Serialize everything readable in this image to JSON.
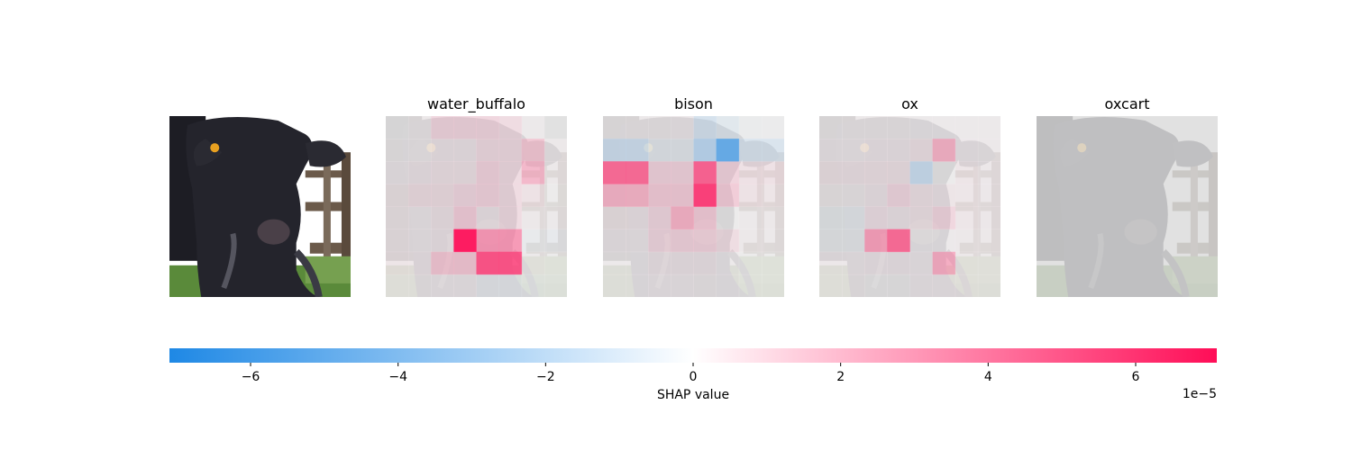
{
  "chart_data": {
    "type": "heatmap",
    "description_free": true,
    "panels": [
      {
        "title": "",
        "kind": "original-image"
      },
      {
        "title": "water_buffalo",
        "grid_rows": 8,
        "grid_cols": 8,
        "shap_values": [
          [
            0.1,
            0.3,
            1.5,
            1.5,
            1.5,
            1.2,
            0.2,
            0.0
          ],
          [
            0.2,
            0.3,
            0.6,
            0.6,
            1.2,
            1.2,
            2.2,
            0.3
          ],
          [
            0.4,
            0.6,
            0.8,
            0.8,
            1.6,
            1.2,
            2.8,
            0.3
          ],
          [
            0.6,
            1.0,
            1.0,
            1.4,
            1.6,
            1.2,
            0.8,
            0.1
          ],
          [
            0.5,
            0.4,
            0.7,
            1.9,
            0.6,
            1.2,
            0.3,
            0.2
          ],
          [
            0.5,
            0.4,
            0.6,
            6.8,
            3.8,
            3.8,
            -0.3,
            -0.4
          ],
          [
            0.6,
            0.5,
            2.2,
            2.2,
            5.6,
            5.6,
            0.2,
            0.1
          ],
          [
            0.3,
            0.3,
            0.4,
            0.4,
            -0.4,
            -0.4,
            -0.2,
            -0.1
          ]
        ]
      },
      {
        "title": "bison",
        "grid_rows": 8,
        "grid_cols": 8,
        "shap_values": [
          [
            0.2,
            0.3,
            0.3,
            0.4,
            -1.6,
            -0.9,
            -0.2,
            -0.1
          ],
          [
            -2.0,
            -2.0,
            -0.6,
            -0.6,
            -2.8,
            -5.4,
            -1.4,
            -1.4
          ],
          [
            5.0,
            5.0,
            1.6,
            1.6,
            5.2,
            1.6,
            0.9,
            0.9
          ],
          [
            2.9,
            2.9,
            2.0,
            2.0,
            6.0,
            2.0,
            0.8,
            0.6
          ],
          [
            0.6,
            0.6,
            1.4,
            3.0,
            2.0,
            0.1,
            0.2,
            0.3
          ],
          [
            0.4,
            0.4,
            1.4,
            1.6,
            1.6,
            1.1,
            0.3,
            0.2
          ],
          [
            0.2,
            0.2,
            0.6,
            0.6,
            0.6,
            0.2,
            0.1,
            0.1
          ],
          [
            0.2,
            0.2,
            0.4,
            0.4,
            0.3,
            0.2,
            0.1,
            0.1
          ]
        ]
      },
      {
        "title": "ox",
        "grid_rows": 8,
        "grid_cols": 8,
        "shap_values": [
          [
            0.2,
            0.3,
            0.3,
            0.3,
            0.2,
            0.2,
            0.2,
            0.2
          ],
          [
            0.4,
            0.4,
            0.5,
            0.5,
            0.8,
            3.0,
            0.4,
            0.3
          ],
          [
            0.7,
            0.7,
            0.8,
            0.8,
            -2.2,
            0.1,
            0.6,
            0.4
          ],
          [
            0.3,
            0.3,
            0.6,
            1.4,
            0.8,
            0.6,
            0.5,
            0.4
          ],
          [
            -0.5,
            -0.5,
            0.9,
            0.6,
            0.8,
            1.5,
            0.5,
            0.4
          ],
          [
            -0.3,
            -0.3,
            3.6,
            5.0,
            0.2,
            0.2,
            0.3,
            0.3
          ],
          [
            0.4,
            0.4,
            0.5,
            0.5,
            0.4,
            3.2,
            0.3,
            0.2
          ],
          [
            0.3,
            0.3,
            0.1,
            0.1,
            0.4,
            0.4,
            0.3,
            0.2
          ]
        ]
      },
      {
        "title": "oxcart",
        "grid_rows": 8,
        "grid_cols": 8,
        "shap_values": [
          [
            0.0,
            0.0,
            0.0,
            0.0,
            0.0,
            0.0,
            0.0,
            0.0
          ],
          [
            0.0,
            0.0,
            0.0,
            0.0,
            0.0,
            0.0,
            0.0,
            0.0
          ],
          [
            0.0,
            0.0,
            0.0,
            0.0,
            0.0,
            0.0,
            0.0,
            0.0
          ],
          [
            0.0,
            0.0,
            0.0,
            0.0,
            0.0,
            0.0,
            0.0,
            0.0
          ],
          [
            0.0,
            0.0,
            0.0,
            0.0,
            0.0,
            0.0,
            0.0,
            0.0
          ],
          [
            0.0,
            0.0,
            0.0,
            0.0,
            0.0,
            0.0,
            0.0,
            0.0
          ],
          [
            0.0,
            0.0,
            0.0,
            0.0,
            0.0,
            0.0,
            0.0,
            0.0
          ],
          [
            0.0,
            0.0,
            0.0,
            0.0,
            0.0,
            0.0,
            0.0,
            0.0
          ]
        ]
      }
    ],
    "colorbar": {
      "label": "SHAP value",
      "range": [
        -7.1,
        7.1
      ],
      "ticks": [
        -6,
        -4,
        -2,
        0,
        2,
        4,
        6
      ],
      "tick_labels": [
        "−6",
        "−4",
        "−2",
        "0",
        "2",
        "4",
        "6"
      ],
      "exponent_label": "1e−5",
      "negative_color": "#1e88e5",
      "positive_color": "#ff0d57"
    },
    "colors": {
      "background_gray": "#dcdcdc",
      "cow_dark": "#24242c",
      "grass": "#5a8a3a",
      "fence": "#6b5a4a",
      "ear_tag": "#e8a020"
    }
  }
}
